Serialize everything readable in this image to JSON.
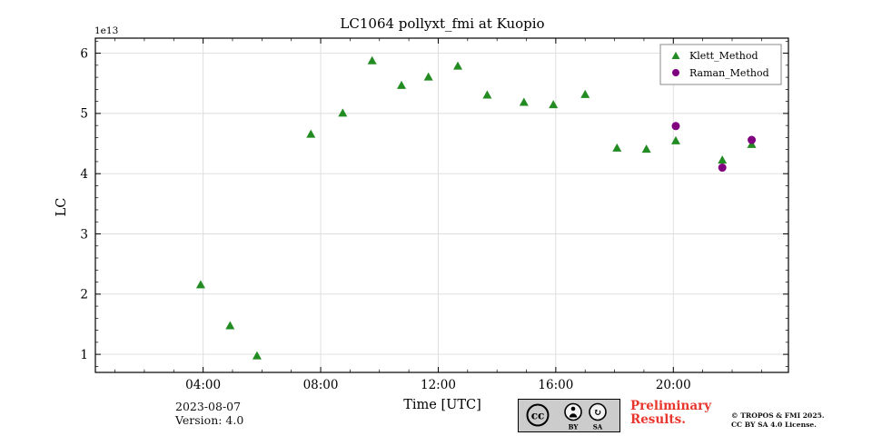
{
  "title": "LC1064 pollyxt_fmi at Kuopio",
  "colors": {
    "klett": "#228B22",
    "raman": "#800080",
    "grid": "#dcdcdc",
    "frame": "#000000",
    "preliminary_red": "#e8362e",
    "legend_border": "#8a8a8a",
    "badge_bg": "#cccccc"
  },
  "footer": {
    "date": "2023-08-07",
    "version": "Version: 4.0",
    "preliminary_line1": "Preliminary",
    "preliminary_line2": "Results.",
    "copyright_line1": "© TROPOS & FMI 2025.",
    "copyright_line2": "CC BY SA 4.0 License.",
    "cc_badge": {
      "cc_label": "cc",
      "by_label": "BY",
      "sa_label": "SA"
    }
  },
  "chart_data": {
    "type": "scatter",
    "title": "LC1064 pollyxt_fmi at Kuopio",
    "xlabel": "Time [UTC]",
    "ylabel": "LC",
    "offset_text": "1e13",
    "y_scale": 10000000000000.0,
    "grid": true,
    "legend_position": "upper right",
    "xlim": [
      "00:20",
      "23:55"
    ],
    "ylim": [
      0.7,
      6.25
    ],
    "x_ticks": [
      "04:00",
      "08:00",
      "12:00",
      "16:00",
      "20:00"
    ],
    "y_ticks": [
      1,
      2,
      3,
      4,
      5,
      6
    ],
    "series": [
      {
        "name": "Klett_Method",
        "marker": "triangle",
        "color": "#228B22",
        "points": [
          [
            "03:55",
            2.15
          ],
          [
            "04:55",
            1.47
          ],
          [
            "05:50",
            0.97
          ],
          [
            "07:40",
            4.65
          ],
          [
            "08:45",
            5.0
          ],
          [
            "09:45",
            5.87
          ],
          [
            "10:45",
            5.46
          ],
          [
            "11:40",
            5.6
          ],
          [
            "12:40",
            5.78
          ],
          [
            "13:40",
            5.3
          ],
          [
            "14:55",
            5.18
          ],
          [
            "15:55",
            5.14
          ],
          [
            "17:00",
            5.31
          ],
          [
            "18:05",
            4.42
          ],
          [
            "19:05",
            4.4
          ],
          [
            "20:05",
            4.54
          ],
          [
            "21:40",
            4.22
          ],
          [
            "22:40",
            4.48
          ]
        ]
      },
      {
        "name": "Raman_Method",
        "marker": "circle",
        "color": "#800080",
        "points": [
          [
            "20:05",
            4.79
          ],
          [
            "21:40",
            4.1
          ],
          [
            "22:40",
            4.56
          ]
        ]
      }
    ]
  }
}
